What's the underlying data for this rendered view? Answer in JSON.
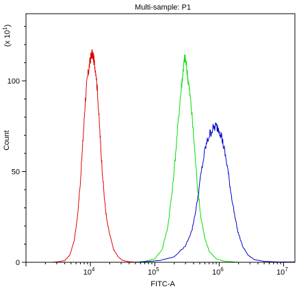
{
  "chart_data": {
    "type": "line",
    "title": "Multi-sample: P1",
    "xlabel": "FITC-A",
    "ylabel": "Count",
    "y_multiplier_base": "(x 10",
    "y_multiplier_exp": "1",
    "y_multiplier_close": ")",
    "x_scale": "log",
    "xlim": [
      1000,
      15000000
    ],
    "ylim": [
      0,
      137
    ],
    "grid": false,
    "legend": "none",
    "x_ticks": [
      {
        "value": 10000,
        "base": "10",
        "exp": "4"
      },
      {
        "value": 100000,
        "base": "10",
        "exp": "5"
      },
      {
        "value": 1000000,
        "base": "10",
        "exp": "6"
      },
      {
        "value": 10000000,
        "base": "10",
        "exp": "7"
      }
    ],
    "y_ticks": [
      {
        "value": 0,
        "label": "0"
      },
      {
        "value": 50,
        "label": "50"
      },
      {
        "value": 100,
        "label": "100"
      }
    ],
    "series": [
      {
        "color": "#e00000",
        "points": [
          [
            2500,
            0
          ],
          [
            3200,
            0.3
          ],
          [
            4000,
            1
          ],
          [
            4800,
            4
          ],
          [
            5600,
            12
          ],
          [
            6300,
            25
          ],
          [
            7000,
            45
          ],
          [
            7700,
            68
          ],
          [
            8300,
            88
          ],
          [
            8900,
            100
          ],
          [
            9500,
            107
          ],
          [
            10000,
            112
          ],
          [
            10500,
            115
          ],
          [
            11000,
            114
          ],
          [
            11500,
            110
          ],
          [
            12200,
            105
          ],
          [
            13000,
            92
          ],
          [
            14000,
            72
          ],
          [
            15000,
            55
          ],
          [
            16500,
            35
          ],
          [
            18000,
            23
          ],
          [
            20000,
            15
          ],
          [
            23000,
            7
          ],
          [
            27000,
            3
          ],
          [
            32000,
            1
          ],
          [
            40000,
            0.3
          ],
          [
            55000,
            0
          ]
        ]
      },
      {
        "color": "#00dd00",
        "points": [
          [
            50000,
            0
          ],
          [
            70000,
            0.5
          ],
          [
            100000,
            2
          ],
          [
            130000,
            7
          ],
          [
            160000,
            20
          ],
          [
            190000,
            42
          ],
          [
            220000,
            68
          ],
          [
            245000,
            88
          ],
          [
            265000,
            100
          ],
          [
            280000,
            108
          ],
          [
            292000,
            113
          ],
          [
            305000,
            110
          ],
          [
            320000,
            104
          ],
          [
            340000,
            97
          ],
          [
            370000,
            85
          ],
          [
            410000,
            65
          ],
          [
            460000,
            42
          ],
          [
            520000,
            25
          ],
          [
            600000,
            13
          ],
          [
            700000,
            6
          ],
          [
            900000,
            2
          ],
          [
            1200000,
            0.6
          ],
          [
            2000000,
            0
          ]
        ]
      },
      {
        "color": "#0000cc",
        "points": [
          [
            50000,
            0
          ],
          [
            80000,
            0.5
          ],
          [
            120000,
            1
          ],
          [
            200000,
            3
          ],
          [
            300000,
            9
          ],
          [
            380000,
            18
          ],
          [
            450000,
            32
          ],
          [
            530000,
            50
          ],
          [
            610000,
            63
          ],
          [
            700000,
            70
          ],
          [
            780000,
            73
          ],
          [
            880000,
            75
          ],
          [
            980000,
            74
          ],
          [
            1080000,
            70
          ],
          [
            1200000,
            62
          ],
          [
            1350000,
            52
          ],
          [
            1500000,
            40
          ],
          [
            1700000,
            28
          ],
          [
            1950000,
            17
          ],
          [
            2300000,
            9
          ],
          [
            2800000,
            4
          ],
          [
            3500000,
            1.5
          ],
          [
            5000000,
            0.5
          ],
          [
            8000000,
            0.2
          ],
          [
            15000000,
            0.2
          ]
        ]
      }
    ]
  }
}
